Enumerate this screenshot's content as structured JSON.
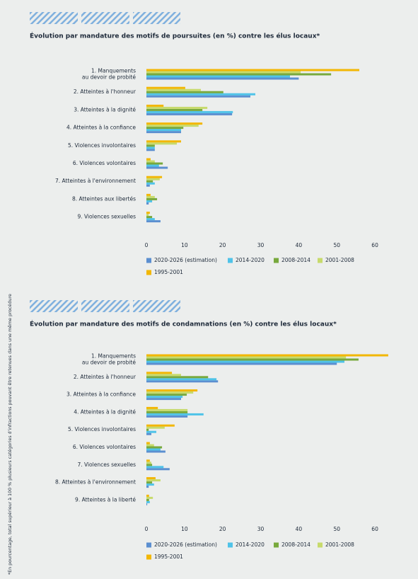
{
  "footnote": "*En pourcentage, total supérieur à 100 % plusieurs catégories d'infractions pouvant être retenues dans une même procédure",
  "chart_data": [
    {
      "type": "bar",
      "orientation": "horizontal",
      "title": "Évolution par mandature des motifs de poursuites (en %) contre les élus locaux*",
      "categories": [
        [
          "1. Manquements",
          "au devoir de probité"
        ],
        "2. Atteintes à l'honneur",
        "3. Atteintes à la dignité",
        "4. Atteintes à la confiance",
        "5. Violences involontaires",
        "6. Violences volontaires",
        "7. Atteintes à l'environnement",
        "8. Atteintes aux libertés",
        "9. Violences sexuelles"
      ],
      "series": [
        {
          "name": "2020-2026 (estimation)",
          "color": "#5b8fd0",
          "values": [
            40,
            27.3,
            22.5,
            9.1,
            2.2,
            5.6,
            0.9,
            0.6,
            3.7
          ]
        },
        {
          "name": "2014-2020",
          "color": "#4fc3e8",
          "values": [
            37.7,
            28.6,
            22.7,
            9.1,
            2.2,
            3.3,
            2.2,
            1.5,
            2.2
          ]
        },
        {
          "name": "2008-2014",
          "color": "#78a93d",
          "values": [
            48.5,
            20.2,
            14.7,
            9.7,
            2.2,
            4.3,
            1.7,
            2.8,
            1.5
          ]
        },
        {
          "name": "2001-2008",
          "color": "#c7da6c",
          "values": [
            40.5,
            14.3,
            16,
            13.7,
            8,
            2.2,
            3.5,
            2.2,
            0.6
          ]
        },
        {
          "name": "1995-2001",
          "color": "#f2b705",
          "values": [
            55.9,
            10.2,
            4.5,
            14.7,
            9.1,
            1.1,
            4.1,
            1.1,
            0.9
          ]
        }
      ],
      "xlim": [
        0,
        65
      ],
      "xticks": [
        0,
        10,
        20,
        30,
        40,
        50,
        60
      ],
      "grid": false
    },
    {
      "type": "bar",
      "orientation": "horizontal",
      "title": "Évolution par mandature des motifs de condamnations (en %) contre les élus locaux*",
      "categories": [
        [
          "1. Manquements",
          "au devoir de probité"
        ],
        "2. Atteintes à l'honneur",
        "3. Atteintes à la confiance",
        "4. Atteintes à la dignité",
        "5. Violences involontaires",
        "6. Violences volontaires",
        "7. Violences sexuelles",
        "8. Atteintes à l'environnement",
        "9. Atteintes à la liberté"
      ],
      "series": [
        {
          "name": "2020-2026 (estimation)",
          "color": "#5b8fd0",
          "values": [
            50,
            18.8,
            9.1,
            10.8,
            1.3,
            5,
            6.1,
            0.6,
            0.2
          ]
        },
        {
          "name": "2014-2020",
          "color": "#4fc3e8",
          "values": [
            52,
            18.4,
            9.5,
            15,
            2.6,
            3.7,
            4.5,
            2,
            0.9
          ]
        },
        {
          "name": "2008-2014",
          "color": "#78a93d",
          "values": [
            55.7,
            16.2,
            10.6,
            10.8,
            0.6,
            4.1,
            1.5,
            1.5,
            0.7
          ]
        },
        {
          "name": "2001-2008",
          "color": "#c7da6c",
          "values": [
            52.4,
            9.1,
            12.3,
            10.8,
            4.8,
            2,
            1.3,
            3.7,
            1.7
          ]
        },
        {
          "name": "1995-2001",
          "color": "#f2b705",
          "values": [
            63.5,
            6.7,
            13.4,
            3,
            7.4,
            0.9,
            0.9,
            2.4,
            0.7
          ]
        }
      ],
      "xlim": [
        0,
        65
      ],
      "xticks": [
        0,
        10,
        20,
        30,
        40,
        50,
        60
      ],
      "grid": false
    }
  ]
}
